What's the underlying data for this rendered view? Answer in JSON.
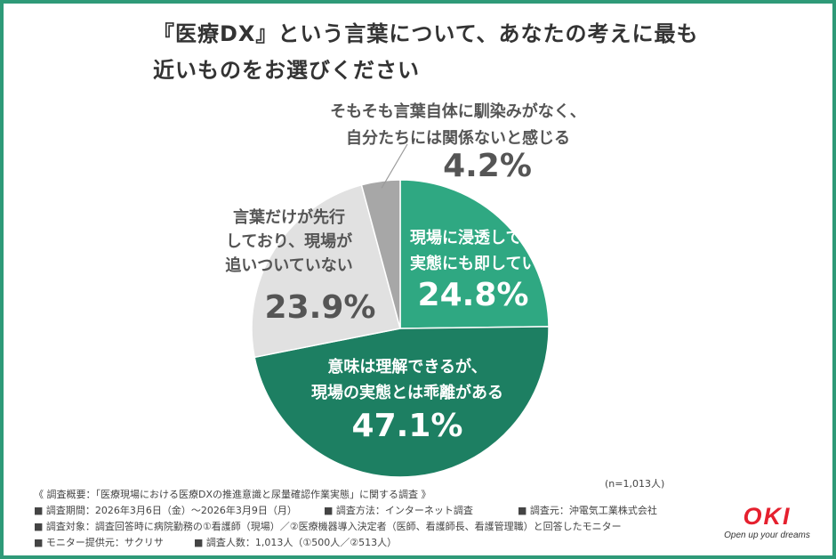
{
  "title": {
    "line1": "『医療DX』という言葉について、あなたの考えに最も",
    "line2": "近いものをお選びください"
  },
  "chart_data": {
    "type": "pie",
    "unit": "%",
    "slices": [
      {
        "label_lines": [
          "現場に浸透しており、",
          "実態にも即している"
        ],
        "value": 24.8,
        "value_label": "24.8%",
        "color": "#2fa882"
      },
      {
        "label_lines": [
          "意味は理解できるが、",
          "現場の実態とは乖離がある"
        ],
        "value": 47.1,
        "value_label": "47.1%",
        "color": "#1d7f62"
      },
      {
        "label_lines": [
          "言葉だけが先行",
          "しており、現場が",
          "追いついていない"
        ],
        "value": 23.9,
        "value_label": "23.9%",
        "color": "#e1e1e1"
      },
      {
        "label_lines": [
          "そもそも言葉自体に馴染みがなく、",
          "自分たちには関係ないと感じる"
        ],
        "value": 4.2,
        "value_label": "4.2%",
        "color": "#a7a7a7"
      }
    ]
  },
  "sample_size": "(n=1,013人)",
  "footer": {
    "line1": "《 調査概要：「医療現場における医療DXの推進意識と尿量確認作業実態」に関する調査 》",
    "period": "■ 調査期間：2026年3月6日（金）〜2026年3月9日（月）",
    "method": "■ 調査方法：インターネット調査",
    "source": "■ 調査元：沖電気工業株式会社",
    "target": "■ 調査対象：調査回答時に病院勤務の①看護師（現場）／②医療機器導入決定者（医師、看護師長、看護管理職）と回答したモニター",
    "provider": "■ モニター提供元：サクリサ",
    "count": "■ 調査人数：1,013人（①500人／②513人）"
  },
  "logo": {
    "mark": "OKI",
    "tagline": "Open up your dreams"
  }
}
